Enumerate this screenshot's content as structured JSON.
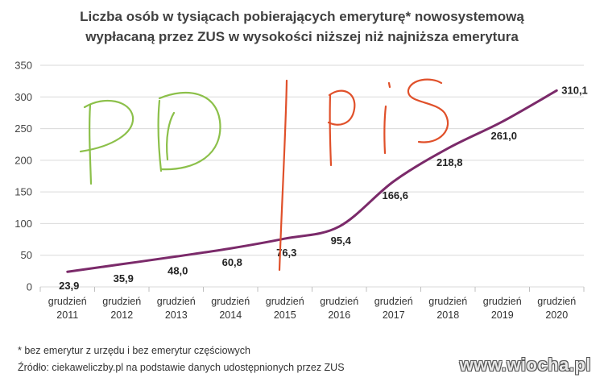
{
  "chart_data": {
    "type": "line",
    "title_line1": "Liczba osób w tysiącach pobierających emeryturę* nowosystemową",
    "title_line2": "wypłacaną przez ZUS w wysokości niższej niż najniższa emerytura",
    "categories": [
      [
        "grudzień",
        "2011"
      ],
      [
        "grudzień",
        "2012"
      ],
      [
        "grudzień",
        "2013"
      ],
      [
        "grudzień",
        "2014"
      ],
      [
        "grudzień",
        "2015"
      ],
      [
        "grudzień",
        "2016"
      ],
      [
        "grudzień",
        "2017"
      ],
      [
        "grudzień",
        "2018"
      ],
      [
        "grudzień",
        "2019"
      ],
      [
        "grudzień",
        "2020"
      ]
    ],
    "values": [
      23.9,
      35.9,
      48.0,
      60.8,
      76.3,
      95.4,
      166.6,
      218.8,
      261.0,
      310.1
    ],
    "value_labels": [
      "23,9",
      "35,9",
      "48,0",
      "60,8",
      "76,3",
      "95,4",
      "166,6",
      "218,8",
      "261,0",
      "310,1"
    ],
    "yticks": [
      0,
      50,
      100,
      150,
      200,
      250,
      300,
      350
    ],
    "ylim": [
      0,
      350
    ],
    "grid": true,
    "line_color": "#7b2a6a",
    "annotations": [
      "PO",
      "PiS"
    ],
    "annotation_colors": {
      "PO": "#8cc04a",
      "PiS": "#e0502a"
    }
  },
  "footnote1": "* bez emerytur z urzędu i bez emerytur częściowych",
  "footnote2": "Źródło: ciekaweliczby.pl na podstawie danych udostępnionych przez ZUS",
  "watermark": "www.wiocha.pl"
}
